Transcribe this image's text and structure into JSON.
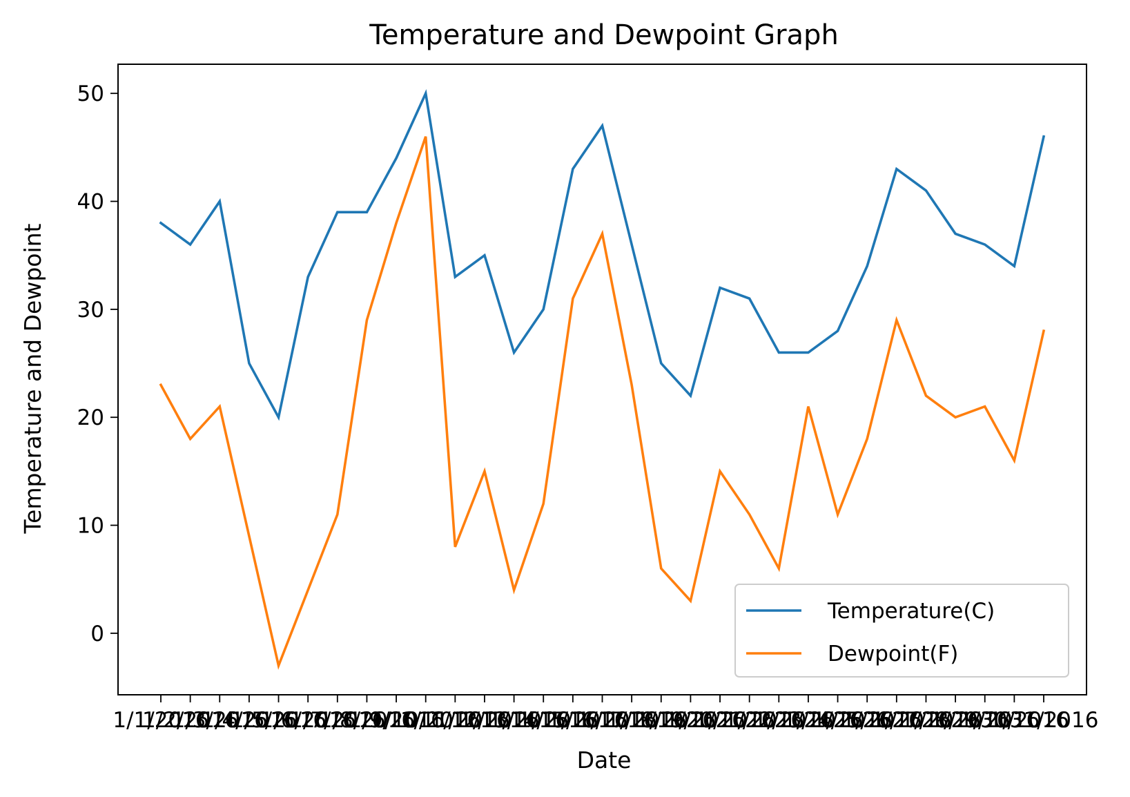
{
  "chart_data": {
    "type": "line",
    "title": "Temperature and Dewpoint Graph",
    "xlabel": "Date",
    "ylabel": "Temperature and Dewpoint",
    "x": [
      "1/1/2016",
      "1/2/2016",
      "1/3/2016",
      "1/4/2016",
      "1/5/2016",
      "1/6/2016",
      "1/7/2016",
      "1/8/2016",
      "1/9/2016",
      "1/10/2016",
      "1/11/2016",
      "1/12/2016",
      "1/13/2016",
      "1/14/2016",
      "1/15/2016",
      "1/16/2016",
      "1/17/2016",
      "1/18/2016",
      "1/19/2016",
      "1/20/2016",
      "1/21/2016",
      "1/22/2016",
      "1/23/2016",
      "1/24/2016",
      "1/25/2016",
      "1/26/2016",
      "1/27/2016",
      "1/28/2016",
      "1/29/2016",
      "1/30/2016",
      "1/31/2016"
    ],
    "series": [
      {
        "name": "Temperature(C)",
        "color": "#1f77b4",
        "values": [
          38,
          36,
          40,
          25,
          20,
          33,
          39,
          39,
          44,
          50,
          33,
          35,
          26,
          30,
          43,
          47,
          36,
          25,
          22,
          32,
          31,
          26,
          26,
          28,
          34,
          43,
          41,
          37,
          36,
          34,
          46
        ]
      },
      {
        "name": "Dewpoint(F)",
        "color": "#ff7f0e",
        "values": [
          23,
          18,
          21,
          9,
          -3,
          4,
          11,
          29,
          38,
          46,
          8,
          15,
          4,
          12,
          31,
          37,
          23,
          6,
          3,
          15,
          11,
          6,
          21,
          11,
          18,
          29,
          22,
          20,
          21,
          16,
          28
        ]
      }
    ],
    "ylim": [
      -5.7,
      52.7
    ],
    "yticks": [
      0,
      10,
      20,
      30,
      40,
      50
    ],
    "grid": false,
    "legend": "lower right"
  }
}
